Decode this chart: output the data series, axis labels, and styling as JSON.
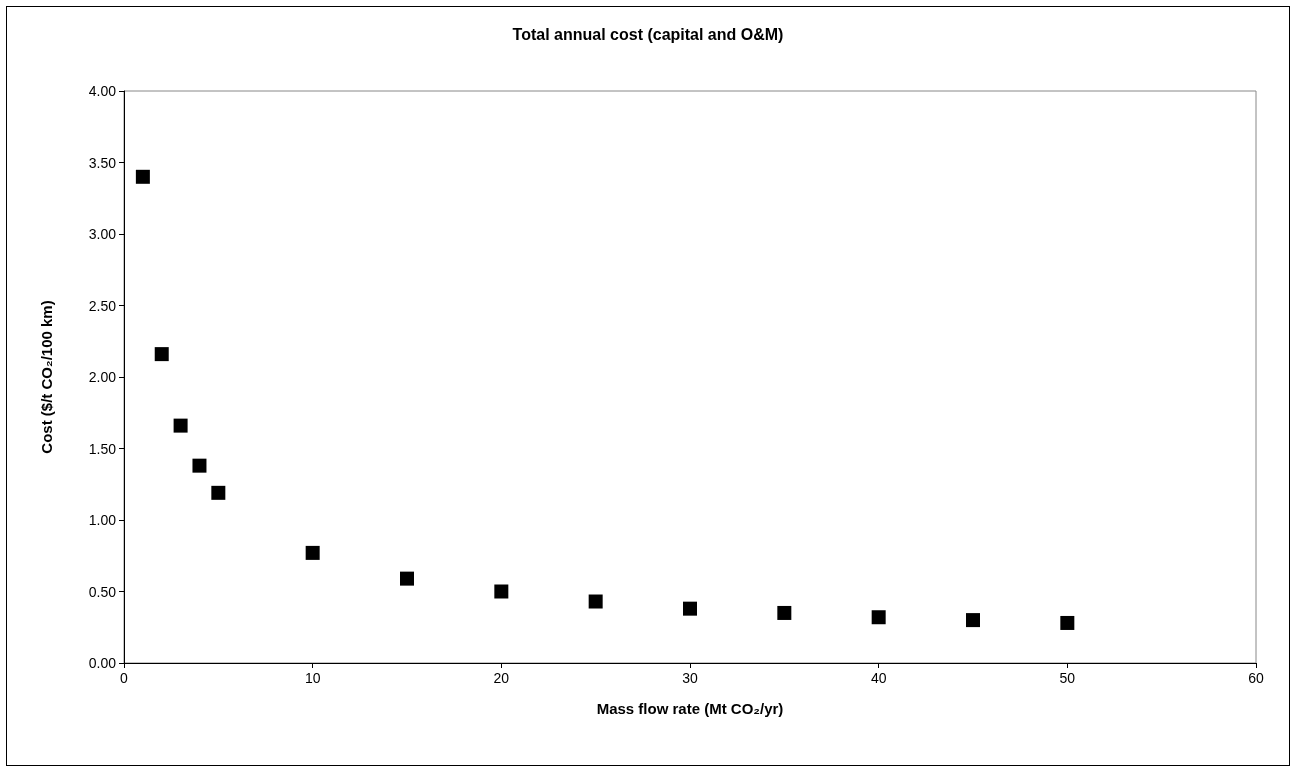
{
  "chart_data": {
    "type": "scatter",
    "title": "Total annual cost (capital and O&M)",
    "xlabel": "Mass flow rate (Mt CO₂/yr)",
    "ylabel": "Cost ($/t CO₂/100 km)",
    "x": [
      1,
      2,
      3,
      4,
      5,
      10,
      15,
      20,
      25,
      30,
      35,
      40,
      45,
      50
    ],
    "series": [
      {
        "color": "#000000",
        "values": [
          3.4,
          2.16,
          1.66,
          1.38,
          1.19,
          0.77,
          0.59,
          0.5,
          0.43,
          0.38,
          0.35,
          0.32,
          0.3,
          0.28
        ]
      }
    ],
    "xlim": [
      0,
      60
    ],
    "xticks": [
      0,
      10,
      20,
      30,
      40,
      50,
      60
    ],
    "ylim": [
      0,
      4
    ],
    "yticks": [
      {
        "value": 0,
        "label": "0.00"
      },
      {
        "value": 0.5,
        "label": "0.50"
      },
      {
        "value": 1,
        "label": "1.00"
      },
      {
        "value": 1.5,
        "label": "1.50"
      },
      {
        "value": 2,
        "label": "2.00"
      },
      {
        "value": 2.5,
        "label": "2.50"
      },
      {
        "value": 3,
        "label": "3.00"
      },
      {
        "value": 3.5,
        "label": "3.50"
      },
      {
        "value": 4,
        "label": "4.00"
      }
    ],
    "marker": "square",
    "grid": false
  }
}
